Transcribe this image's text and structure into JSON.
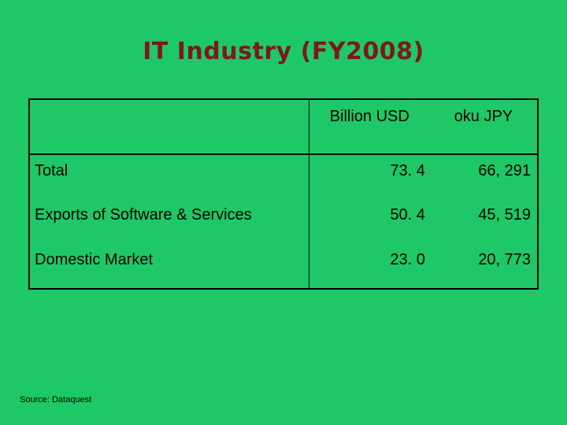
{
  "slide": {
    "title": "IT Industry (FY2008)",
    "source": "Source: Dataquest"
  },
  "table": {
    "headers": [
      "",
      "Billion USD",
      "oku JPY"
    ],
    "rows": [
      {
        "label": "Total",
        "usd": "73. 4",
        "jpy": "66, 291"
      },
      {
        "label": "Exports of Software & Services",
        "usd": "50. 4",
        "jpy": "45, 519"
      },
      {
        "label": "Domestic Market",
        "usd": "23. 0",
        "jpy": "20, 773"
      }
    ]
  },
  "colors": {
    "background": "#1fc866",
    "title": "#7a1a1a",
    "text": "#000000"
  }
}
